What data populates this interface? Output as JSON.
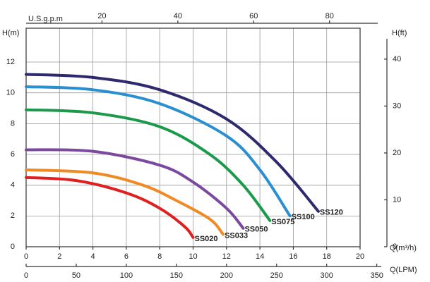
{
  "chart_data": {
    "type": "line",
    "y_label": "H(m)",
    "y2_label": "H(ft)",
    "x_label": "Q(m³/h)",
    "x2_label": "U.S.g.p.m",
    "x3_label": "Q(LPM)",
    "xlim": [
      0,
      20
    ],
    "xticks": [
      0,
      2,
      4,
      6,
      8,
      10,
      12,
      14,
      16,
      18,
      20
    ],
    "x2lim": [
      0,
      88.06
    ],
    "x2ticks": [
      20,
      40,
      60,
      80
    ],
    "x3lim": [
      0,
      333.33
    ],
    "x3ticks": [
      0,
      50,
      100,
      150,
      200,
      250,
      300,
      350
    ],
    "ylim": [
      0,
      14.2
    ],
    "yticks": [
      0,
      2,
      4,
      6,
      8,
      10,
      12
    ],
    "y2lim": [
      0,
      46.6
    ],
    "y2ticks": [
      0,
      10,
      20,
      30,
      40
    ],
    "grid": true,
    "series": [
      {
        "name": "SS120",
        "color": "#2e2a6e",
        "x": [
          0,
          4,
          8,
          12,
          15,
          17.5
        ],
        "values": [
          11.2,
          11.0,
          10.2,
          8.3,
          5.5,
          2.3
        ]
      },
      {
        "name": "SS100",
        "color": "#2a8fd0",
        "x": [
          0,
          4,
          8,
          12,
          14,
          15.8
        ],
        "values": [
          10.4,
          10.2,
          9.3,
          7.2,
          5.0,
          2.0
        ]
      },
      {
        "name": "SS075",
        "color": "#1a9a4a",
        "x": [
          0,
          4,
          8,
          11,
          13,
          14.6
        ],
        "values": [
          8.9,
          8.7,
          7.8,
          6.0,
          4.0,
          1.7
        ]
      },
      {
        "name": "SS050",
        "color": "#7b4a9e",
        "x": [
          0,
          4,
          8,
          10,
          12,
          13
        ],
        "values": [
          6.3,
          6.2,
          5.3,
          4.2,
          2.5,
          1.2
        ]
      },
      {
        "name": "SS033",
        "color": "#f08a24",
        "x": [
          0,
          4,
          7,
          9,
          11,
          11.8
        ],
        "values": [
          5.0,
          4.8,
          4.0,
          3.0,
          1.8,
          0.8
        ]
      },
      {
        "name": "SS020",
        "color": "#e02020",
        "x": [
          0,
          3,
          6,
          8,
          9.5,
          10
        ],
        "values": [
          4.5,
          4.3,
          3.5,
          2.5,
          1.3,
          0.6
        ]
      }
    ]
  }
}
